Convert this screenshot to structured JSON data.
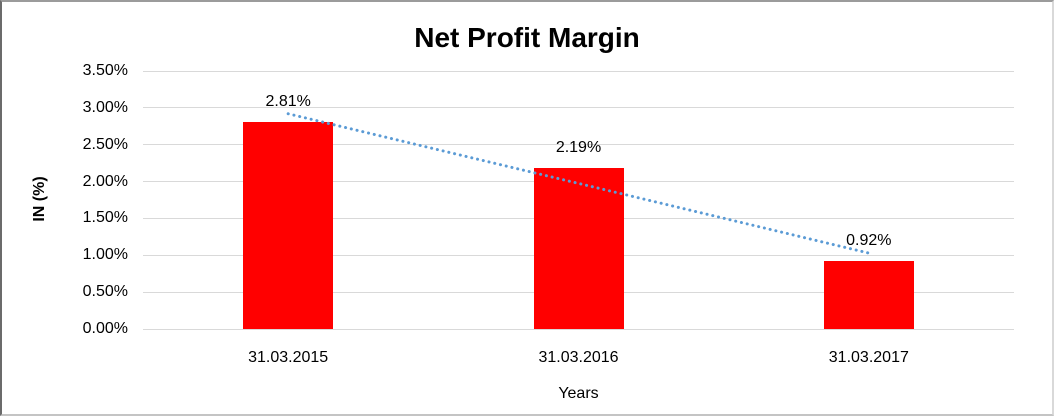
{
  "chart_data": {
    "type": "bar",
    "title": "Net Profit Margin",
    "categories": [
      "31.03.2015",
      "31.03.2016",
      "31.03.2017"
    ],
    "values": [
      2.81,
      2.19,
      0.92
    ],
    "data_labels": [
      "2.81%",
      "2.19%",
      "0.92%"
    ],
    "xlabel": "Years",
    "ylabel": "IN (%)",
    "ylim": [
      0,
      3.5
    ],
    "ytick_values": [
      0,
      0.5,
      1,
      1.5,
      2,
      2.5,
      3,
      3.5
    ],
    "ytick_labels": [
      "0.00%",
      "0.50%",
      "1.00%",
      "1.50%",
      "2.00%",
      "2.50%",
      "3.00%",
      "3.50%"
    ],
    "grid": true,
    "legend": false,
    "colors": {
      "bar": "#FF0000",
      "trendline": "#5B9BD5",
      "gridline": "#D9D9D9",
      "text": "#000000"
    },
    "trendline": {
      "type": "linear",
      "style": "dotted",
      "endpoint_values": [
        2.92,
        1.03
      ]
    }
  }
}
